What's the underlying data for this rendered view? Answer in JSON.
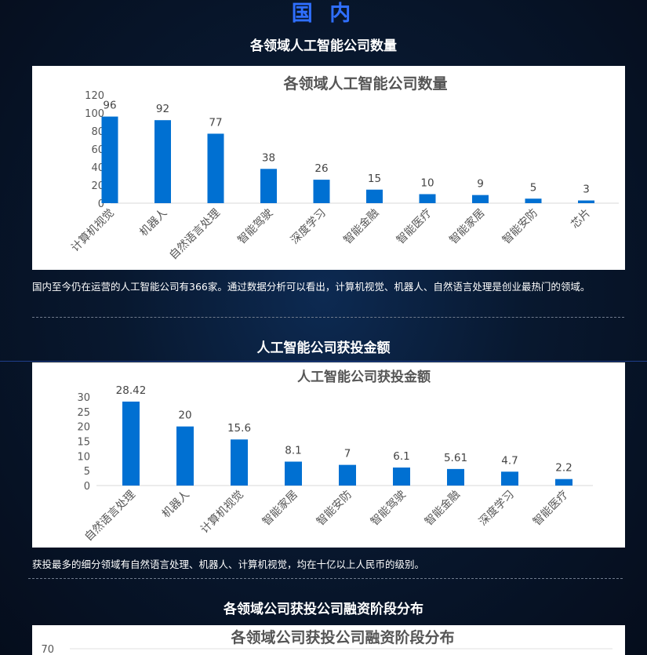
{
  "page": {
    "heading": "国 内",
    "sections": [
      {
        "title": "各领域人工智能公司数量",
        "caption": "国内至今仍在运营的人工智能公司有366家。通过数据分析可以看出，计算机视觉、机器人、自然语言处理是创业最热门的领域。"
      },
      {
        "title": "人工智能公司获投金额",
        "caption": "获投最多的细分领域有自然语言处理、机器人、计算机视觉，均在十亿以上人民币的级别。"
      },
      {
        "title": "各领域公司获投公司融资阶段分布",
        "caption": ""
      }
    ]
  },
  "chart_data": [
    {
      "type": "bar",
      "title": "各领域人工智能公司数量",
      "categories": [
        "计算机视觉",
        "机器人",
        "自然语言处理",
        "智能驾驶",
        "深度学习",
        "智能金融",
        "智能医疗",
        "智能家居",
        "智能安防",
        "芯片"
      ],
      "values": [
        96,
        92,
        77,
        38,
        26,
        15,
        10,
        9,
        5,
        3
      ],
      "ylim": [
        0,
        120
      ],
      "yticks": [
        0,
        20,
        40,
        60,
        80,
        100,
        120
      ],
      "bar_color": "#0070d2",
      "grid": false
    },
    {
      "type": "bar",
      "title": "人工智能公司获投金额",
      "categories": [
        "自然语言处理",
        "机器人",
        "计算机视觉",
        "智能家居",
        "智能安防",
        "智能驾驶",
        "智能金融",
        "深度学习",
        "智能医疗"
      ],
      "values": [
        28.42,
        20,
        15.6,
        8.1,
        7,
        6.1,
        5.61,
        4.7,
        2.2
      ],
      "ylim": [
        0,
        30
      ],
      "yticks": [
        0,
        5,
        10,
        15,
        20,
        25,
        30
      ],
      "bar_color": "#0070d2",
      "grid": false
    },
    {
      "type": "bar",
      "title": "各领域公司获投公司融资阶段分布",
      "categories": [],
      "values": [],
      "yticks": [
        70
      ],
      "bar_color": "#0070d2",
      "grid": false
    }
  ]
}
